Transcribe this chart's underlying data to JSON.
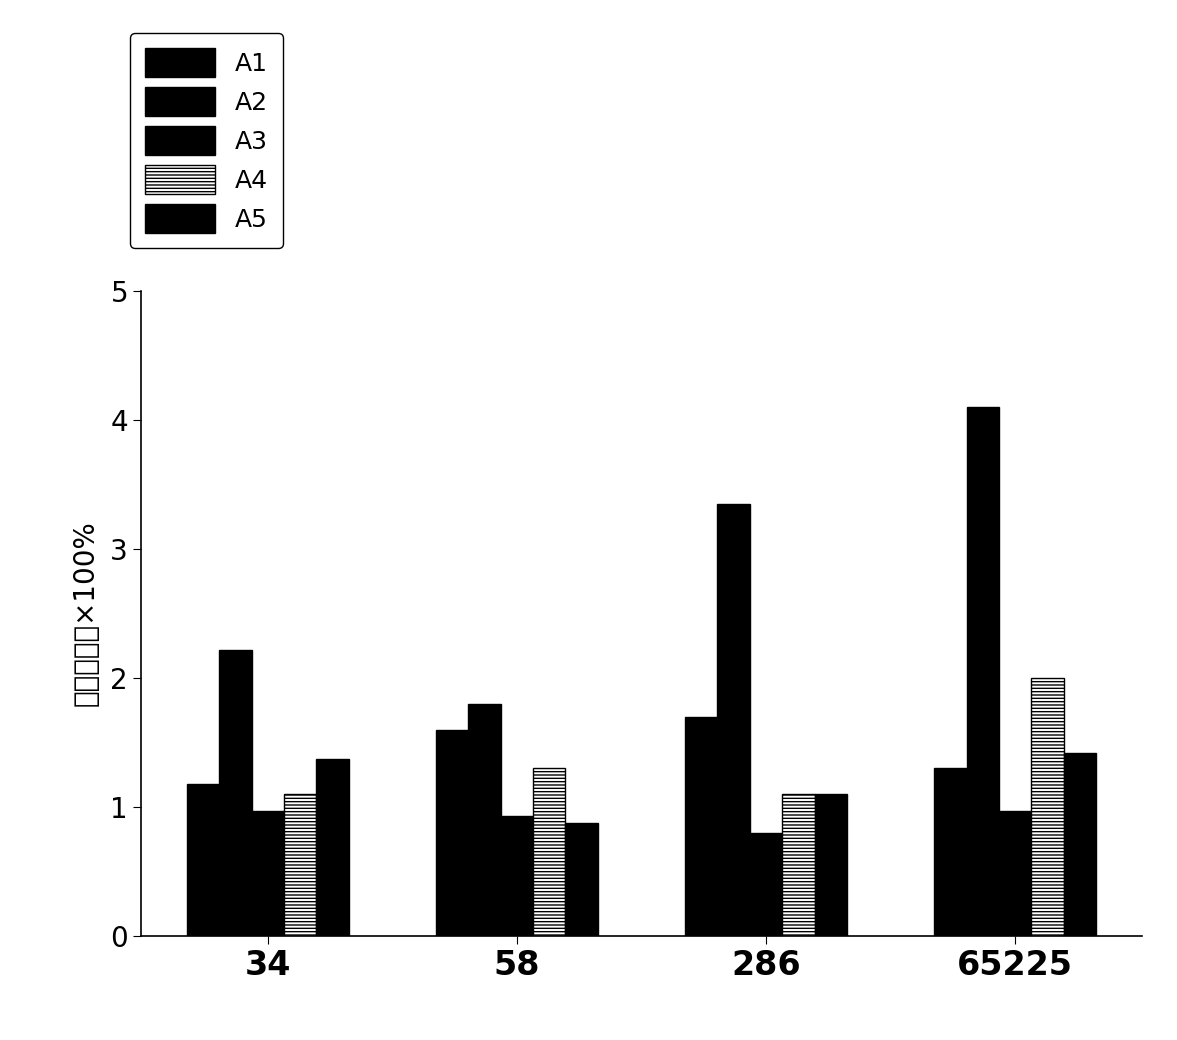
{
  "categories": [
    "34",
    "58",
    "286",
    "65225"
  ],
  "series": {
    "A1": [
      1.18,
      1.6,
      1.7,
      1.3
    ],
    "A2": [
      2.22,
      1.8,
      3.35,
      4.1
    ],
    "A3": [
      0.97,
      0.93,
      0.8,
      0.97
    ],
    "A4": [
      1.1,
      1.3,
      1.1,
      2.0
    ],
    "A5": [
      1.37,
      0.88,
      1.1,
      1.42
    ]
  },
  "colors": {
    "A1": "#000000",
    "A2": "#000000",
    "A3": "#000000",
    "A4": "#ffffff",
    "A5": "#000000"
  },
  "hatches": {
    "A1": "",
    "A2": "",
    "A3": "",
    "A4": "-----",
    "A5": ""
  },
  "ylabel": "芝团分化率×100%",
  "ylim": [
    0,
    5
  ],
  "yticks": [
    0,
    1,
    2,
    3,
    4,
    5
  ],
  "bar_width": 0.13,
  "legend_fontsize": 18,
  "ylabel_fontsize": 20,
  "tick_fontsize": 20,
  "xlabel_fontsize": 24
}
